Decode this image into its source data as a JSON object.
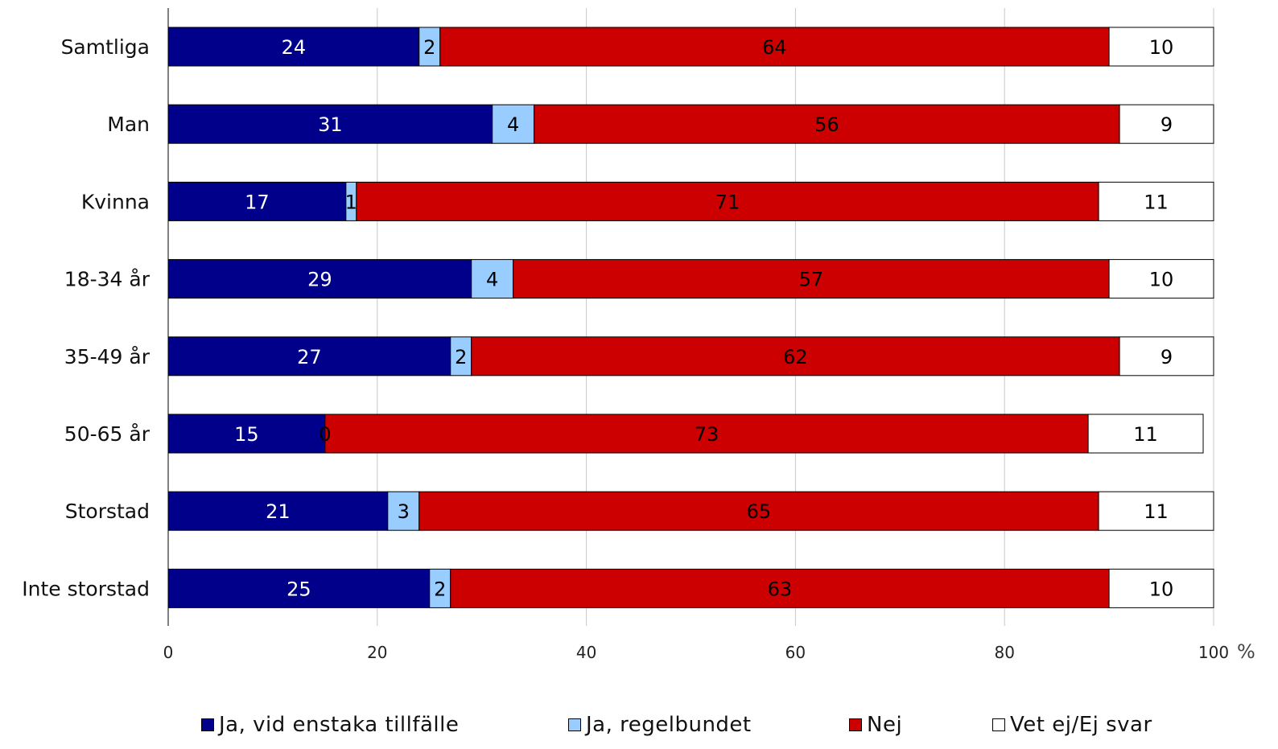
{
  "chart_data": {
    "type": "bar",
    "orientation": "horizontal",
    "stacked": true,
    "categories": [
      "Samtliga",
      "Man",
      "Kvinna",
      "18-34 år",
      "35-49 år",
      "50-65 år",
      "Storstad",
      "Inte storstad"
    ],
    "series": [
      {
        "name": "Ja, vid enstaka tillfälle",
        "color": "#00008B",
        "label_color": "#ffffff",
        "values": [
          24,
          31,
          17,
          29,
          27,
          15,
          21,
          25
        ]
      },
      {
        "name": "Ja, regelbundet",
        "color": "#99CCFF",
        "label_color": "#000000",
        "values": [
          2,
          4,
          1,
          4,
          2,
          0,
          3,
          2
        ]
      },
      {
        "name": "Nej",
        "color": "#CC0000",
        "label_color": "#000000",
        "values": [
          64,
          56,
          71,
          57,
          62,
          73,
          65,
          63
        ]
      },
      {
        "name": "Vet ej/Ej svar",
        "color": "#FFFFFF",
        "label_color": "#000000",
        "values": [
          10,
          9,
          11,
          10,
          9,
          11,
          11,
          10
        ]
      }
    ],
    "xlim": [
      0,
      100
    ],
    "xticks": [
      "0",
      "20",
      "40",
      "60",
      "80",
      "100"
    ],
    "x_unit": "%",
    "grid": "vertical",
    "legend_position": "bottom"
  }
}
